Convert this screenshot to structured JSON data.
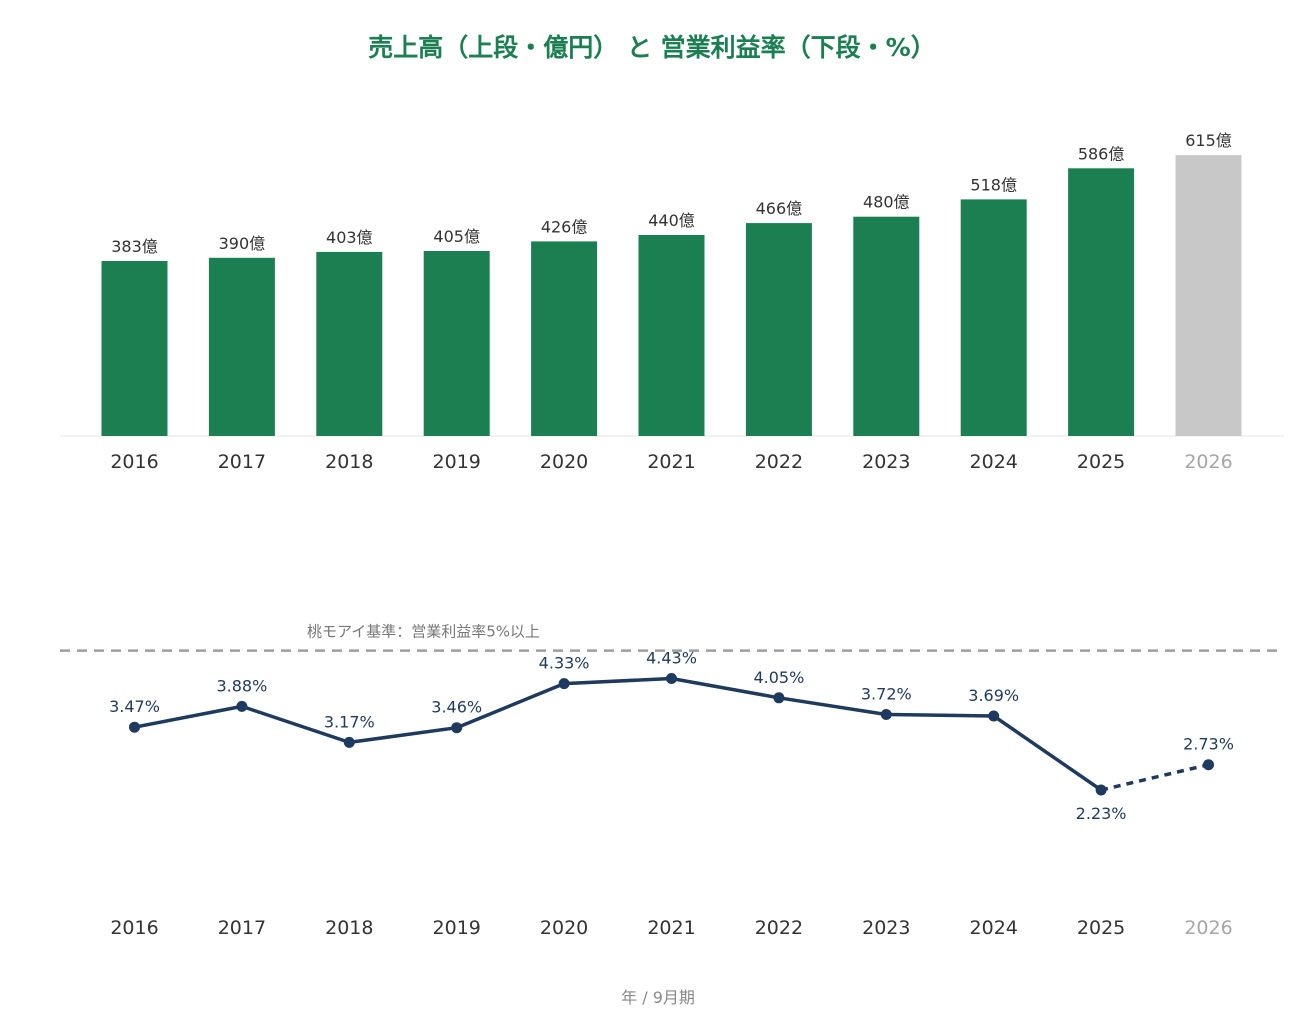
{
  "chart_data": [
    {
      "type": "bar",
      "title": "売上高（上段・億円） と 営業利益率（下段・%）",
      "categories": [
        "2016",
        "2017",
        "2018",
        "2019",
        "2020",
        "2021",
        "2022",
        "2023",
        "2024",
        "2025",
        "2026"
      ],
      "values": [
        383,
        390,
        403,
        405,
        426,
        440,
        466,
        480,
        518,
        586,
        615
      ],
      "data_labels": [
        "383億",
        "390億",
        "403億",
        "405億",
        "426億",
        "440億",
        "466億",
        "480億",
        "518億",
        "586億",
        "615億"
      ],
      "forecast_index": 10,
      "ylim": [
        0,
        640
      ],
      "grid": false
    },
    {
      "type": "line",
      "categories": [
        "2016",
        "2017",
        "2018",
        "2019",
        "2020",
        "2021",
        "2022",
        "2023",
        "2024",
        "2025",
        "2026"
      ],
      "values": [
        3.47,
        3.88,
        3.17,
        3.46,
        4.33,
        4.43,
        4.05,
        3.72,
        3.69,
        2.23,
        2.73
      ],
      "data_labels": [
        "3.47%",
        "3.88%",
        "3.17%",
        "3.46%",
        "4.33%",
        "4.43%",
        "4.05%",
        "3.72%",
        "3.69%",
        "2.23%",
        "2.73%"
      ],
      "forecast_index": 10,
      "reference_line": {
        "value": 5,
        "label": "桃モアイ基準：営業利益率5%以上"
      },
      "grid": false
    }
  ],
  "footer": "年 / 9月期",
  "colors": {
    "title": "#1b7f52",
    "bar": "#1b7f52",
    "bar_forecast": "#c8c8c8",
    "line": "#1f3a5f",
    "reference": "#9e9e9e",
    "tick": "#333333",
    "tick_forecast": "#a6a6a6",
    "bar_label": "#333333",
    "footer": "#888888"
  }
}
